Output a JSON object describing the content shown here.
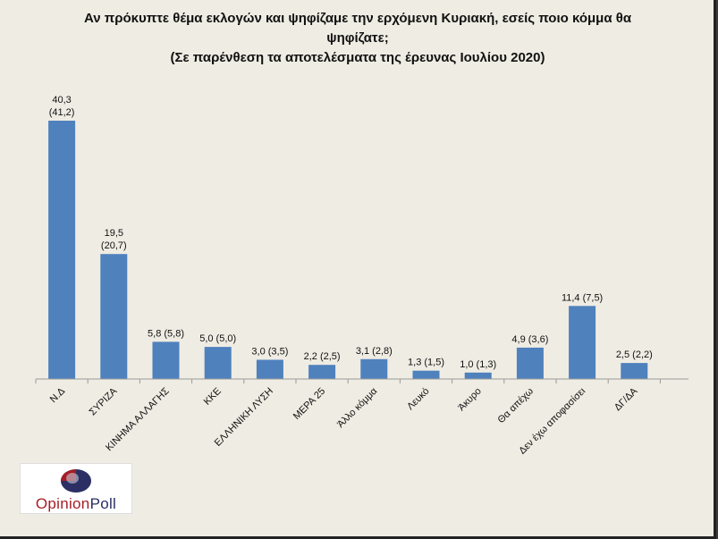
{
  "chart_data": {
    "type": "bar",
    "title": [
      "Αν πρόκυπτε θέμα εκλογών και ψηφίζαμε την ερχόμενη Κυριακή, εσείς ποιο κόμμα θα",
      "ψηφίζατε;",
      "(Σε παρένθεση τα αποτελέσματα της έρευνας Ιουλίου 2020)"
    ],
    "categories": [
      "Ν.Δ",
      "ΣΥΡΙΖΑ",
      "ΚΙΝΗΜΑ ΑΛΛΑΓΗΣ",
      "ΚΚΕ",
      "ΕΛΛΗΝΙΚΗ ΛΥΣΗ",
      "ΜΕΡΑ 25",
      "Άλλο κόμμα",
      "Λευκό",
      "Άκυρο",
      "Θα απέχω",
      "Δεν έχω αποφασίσει",
      "ΔΓ/ΔΑ"
    ],
    "values": [
      40.3,
      19.5,
      5.8,
      5.0,
      3.0,
      2.2,
      3.1,
      1.3,
      1.0,
      4.9,
      11.4,
      2.5
    ],
    "previous_values": [
      41.2,
      20.7,
      5.8,
      5.0,
      3.5,
      2.5,
      2.8,
      1.5,
      1.3,
      3.6,
      7.5,
      2.2
    ],
    "data_labels": [
      [
        "40,3",
        "(41,2)"
      ],
      [
        "19,5",
        "(20,7)"
      ],
      [
        "5,8 (5,8)"
      ],
      [
        "5,0 (5,0)"
      ],
      [
        "3,0 (3,5)"
      ],
      [
        "2,2 (2,5)"
      ],
      [
        "3,1 (2,8)"
      ],
      [
        "1,3 (1,5)"
      ],
      [
        "1,0 (1,3)"
      ],
      [
        "4,9 (3,6)"
      ],
      [
        "11,4 (7,5)"
      ],
      [
        "2,5 (2,2)"
      ]
    ],
    "ylim": [
      0,
      41
    ],
    "grid": false,
    "legend": "none",
    "bar_color": "#4f81bd"
  },
  "logo": {
    "text_opinion": "Opinion",
    "text_poll": "Poll",
    "color_red": "#a51e26",
    "color_navy": "#2b2f63"
  }
}
